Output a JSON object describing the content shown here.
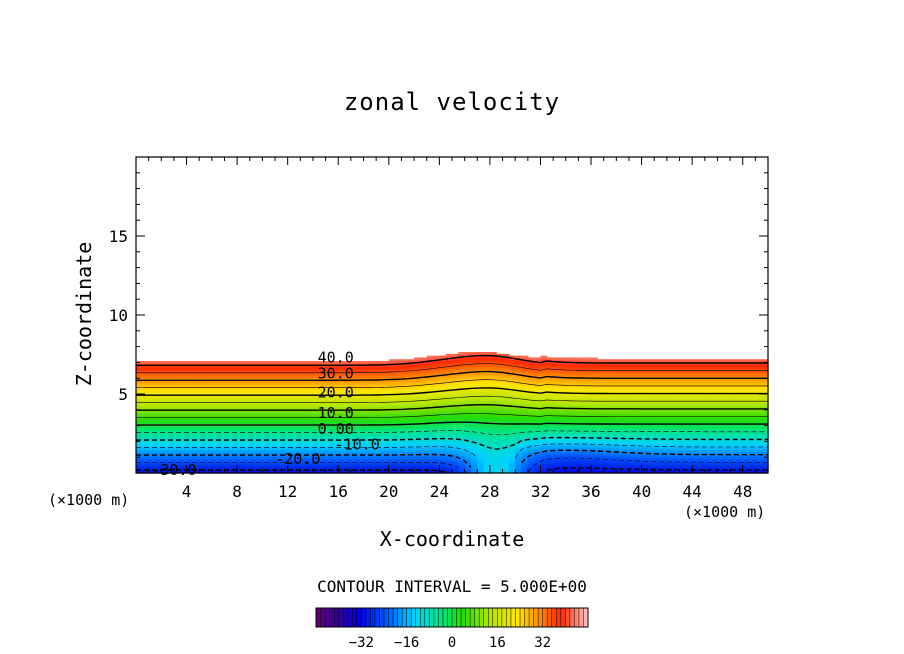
{
  "chart_data": {
    "type": "contour",
    "title": "zonal velocity",
    "xlabel": "X-coordinate",
    "ylabel": "Z-coordinate",
    "x_unit": "(×1000 m)",
    "z_unit": "(×1000 m)",
    "xlim": [
      0,
      50
    ],
    "zlim": [
      0,
      20
    ],
    "x_ticks": [
      4,
      8,
      12,
      16,
      20,
      24,
      28,
      32,
      36,
      40,
      44,
      48
    ],
    "z_ticks": [
      5,
      10,
      15
    ],
    "contour_interval_label": "CONTOUR INTERVAL = 5.000E+00",
    "contour_labels": [
      {
        "text": "40.0",
        "x": 15.8,
        "z": 7.3
      },
      {
        "text": "30.0",
        "x": 15.8,
        "z": 6.3
      },
      {
        "text": "20.0",
        "x": 15.8,
        "z": 5.1
      },
      {
        "text": "10.0",
        "x": 15.8,
        "z": 3.8
      },
      {
        "text": "0.00",
        "x": 15.8,
        "z": 2.8
      },
      {
        "text": "-10.0",
        "x": 17.5,
        "z": 1.8
      },
      {
        "text": "-20.0",
        "x": 12.8,
        "z": 0.9
      },
      {
        "text": "-30.0",
        "x": 3.0,
        "z": 0.2
      }
    ],
    "field_description_values": {
      "upwind_profile": [
        {
          "z": 0.0,
          "u": -32
        },
        {
          "z": 2.9,
          "u": 0
        },
        {
          "z": 7.3,
          "u": 40
        }
      ],
      "hill_crest_x": 28.5,
      "top_of_shear_layer_z": 7.3
    },
    "colorbar": {
      "ticks": [
        -32,
        -16,
        0,
        16,
        32
      ],
      "range": [
        -48,
        48
      ]
    }
  }
}
